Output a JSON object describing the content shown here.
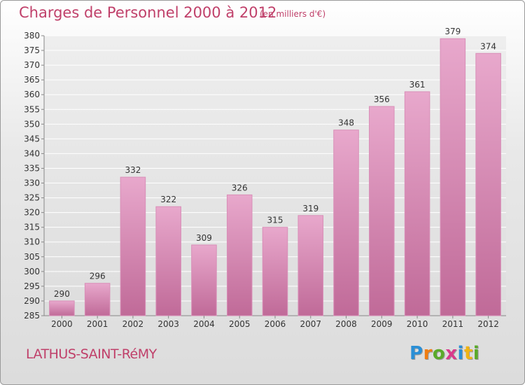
{
  "header": {
    "title": "Charges de Personnel 2000 à 2012",
    "unit": "(en milliers d'€)"
  },
  "footer": {
    "commune": "LATHUS-SAINT-RéMY",
    "logo_letters": [
      "P",
      "r",
      "o",
      "x",
      "i",
      "t",
      "i"
    ],
    "logo_colors": [
      "#2a8fd6",
      "#f07d12",
      "#5aaa2a",
      "#d93a8c",
      "#2a8fd6",
      "#f0b412",
      "#5aaa2a"
    ]
  },
  "colors": {
    "bar_top": "#e8a8cc",
    "bar_bottom": "#c06a98",
    "text": "#333333",
    "grid": "#ffffff"
  },
  "chart_data": {
    "type": "bar",
    "categories": [
      "2000",
      "2001",
      "2002",
      "2003",
      "2004",
      "2005",
      "2006",
      "2007",
      "2008",
      "2009",
      "2010",
      "2011",
      "2012"
    ],
    "values": [
      290,
      296,
      332,
      322,
      309,
      326,
      315,
      319,
      348,
      356,
      361,
      379,
      374
    ],
    "ylim": [
      285,
      380
    ],
    "ytick_step": 5,
    "grid": true
  }
}
